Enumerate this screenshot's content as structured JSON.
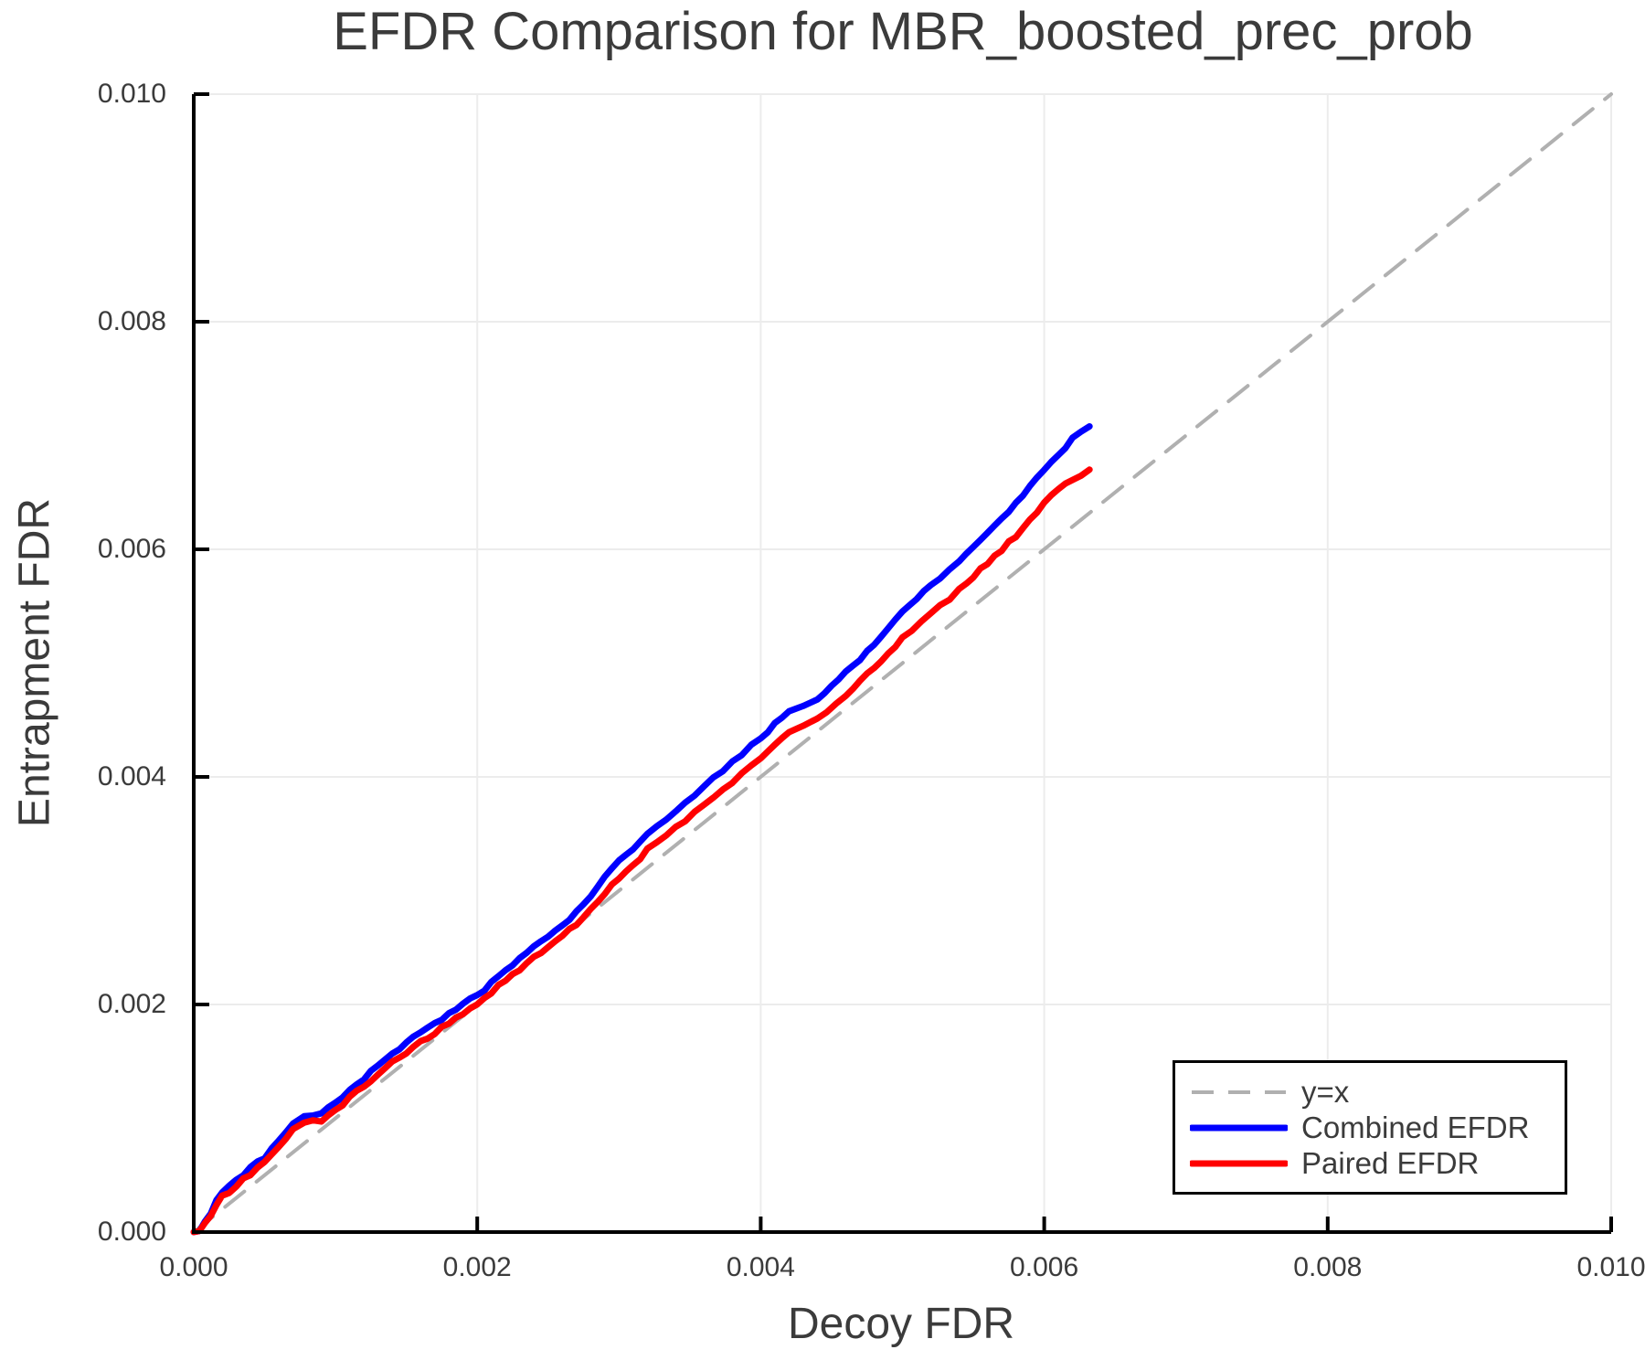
{
  "title": "EFDR Comparison for MBR_boosted_prec_prob",
  "axes": {
    "xlabel": "Decoy FDR",
    "ylabel": "Entrapment FDR",
    "x_tick_values": [
      0,
      0.002,
      0.004,
      0.006,
      0.008,
      0.01
    ],
    "x_tick_labels": [
      "0.000",
      "0.002",
      "0.004",
      "0.006",
      "0.008",
      "0.010"
    ],
    "y_tick_values": [
      0,
      0.002,
      0.004,
      0.006,
      0.008,
      0.01
    ],
    "y_tick_labels": [
      "0.000",
      "0.002",
      "0.004",
      "0.006",
      "0.008",
      "0.010"
    ],
    "grid": true
  },
  "style": {
    "background": "#ffffff",
    "grid_color": "#ececec",
    "axis_color": "#000000",
    "text_color": "#3b3b3b",
    "identity_color": "#b0b0b0",
    "combined_color": "#0000ff",
    "paired_color": "#ff0000"
  },
  "legend": {
    "position": "lower right",
    "entries": [
      {
        "label": "y=x",
        "color": "#b0b0b0",
        "dashed": true
      },
      {
        "label": "Combined EFDR",
        "color": "#0000ff",
        "dashed": false
      },
      {
        "label": "Paired EFDR",
        "color": "#ff0000",
        "dashed": false
      }
    ]
  },
  "chart_data": {
    "type": "line",
    "title": "EFDR Comparison for MBR_boosted_prec_prob",
    "xlabel": "Decoy FDR",
    "ylabel": "Entrapment FDR",
    "xlim": [
      0,
      0.01
    ],
    "ylim": [
      0,
      0.01
    ],
    "grid": true,
    "legend_position": "lower right",
    "series": [
      {
        "name": "y=x",
        "style": "dashed",
        "color": "#b0b0b0",
        "x": [
          0,
          0.01
        ],
        "y": [
          0,
          0.01
        ]
      },
      {
        "name": "Combined EFDR",
        "style": "solid",
        "color": "#0000ff",
        "x": [
          0,
          4e-05,
          8e-05,
          0.00012,
          0.00016,
          0.0002,
          0.00025,
          0.0003,
          0.0004,
          0.0005,
          0.0006,
          0.0007,
          0.00078,
          0.0009,
          0.001,
          0.0011,
          0.0012,
          0.0013,
          0.0014,
          0.0015,
          0.0016,
          0.0017,
          0.0018,
          0.0019,
          0.002,
          0.0021,
          0.0022,
          0.0023,
          0.0024,
          0.0025,
          0.0026,
          0.0027,
          0.0028,
          0.0029,
          0.003,
          0.0031,
          0.0032,
          0.0034,
          0.0036,
          0.0038,
          0.004,
          0.0041,
          0.0042,
          0.0043,
          0.0044,
          0.0046,
          0.0048,
          0.005,
          0.0052,
          0.0054,
          0.0056,
          0.0058,
          0.006,
          0.0061,
          0.0062,
          0.00632
        ],
        "y": [
          0,
          1e-05,
          0.0001,
          0.00016,
          0.00028,
          0.00036,
          0.0004,
          0.00046,
          0.00056,
          0.00066,
          0.0008,
          0.00096,
          0.00101,
          0.00104,
          0.00114,
          0.00125,
          0.00135,
          0.00146,
          0.00157,
          0.00166,
          0.00175,
          0.00183,
          0.00192,
          0.002,
          0.00208,
          0.00219,
          0.0023,
          0.0024,
          0.00252,
          0.0026,
          0.0027,
          0.00281,
          0.00294,
          0.00312,
          0.00326,
          0.00336,
          0.0035,
          0.0037,
          0.00392,
          0.00413,
          0.00434,
          0.00447,
          0.00458,
          0.00462,
          0.00468,
          0.00492,
          0.00516,
          0.00545,
          0.00568,
          0.0059,
          0.00614,
          0.0064,
          0.0067,
          0.00682,
          0.00697,
          0.00708
        ]
      },
      {
        "name": "Paired EFDR",
        "style": "solid",
        "color": "#ff0000",
        "x": [
          0,
          4e-05,
          8e-05,
          0.00012,
          0.00016,
          0.0002,
          0.00025,
          0.0003,
          0.0004,
          0.0005,
          0.0006,
          0.0007,
          0.00078,
          0.0009,
          0.001,
          0.0011,
          0.0012,
          0.0013,
          0.0014,
          0.0015,
          0.0016,
          0.0017,
          0.0018,
          0.0019,
          0.002,
          0.0021,
          0.0022,
          0.0023,
          0.0024,
          0.0025,
          0.0026,
          0.0027,
          0.0028,
          0.0029,
          0.003,
          0.0031,
          0.0032,
          0.0034,
          0.0036,
          0.0038,
          0.004,
          0.0041,
          0.0042,
          0.0043,
          0.0044,
          0.0046,
          0.0048,
          0.005,
          0.0052,
          0.0054,
          0.0056,
          0.0058,
          0.006,
          0.0061,
          0.0062,
          0.00632
        ],
        "y": [
          0,
          1e-05,
          8e-05,
          0.00013,
          0.00024,
          0.00032,
          0.00035,
          0.00041,
          0.00051,
          0.00061,
          0.00074,
          0.0009,
          0.00096,
          0.00098,
          0.00107,
          0.00118,
          0.00128,
          0.00139,
          0.00149,
          0.00158,
          0.00167,
          0.00175,
          0.00184,
          0.00192,
          0.002,
          0.00211,
          0.00222,
          0.0023,
          0.00242,
          0.0025,
          0.00261,
          0.00271,
          0.00283,
          0.00298,
          0.00311,
          0.00322,
          0.00336,
          0.00355,
          0.00376,
          0.00396,
          0.00416,
          0.00428,
          0.0044,
          0.00444,
          0.0045,
          0.00472,
          0.00496,
          0.00522,
          0.00543,
          0.00564,
          0.00588,
          0.00612,
          0.00641,
          0.00652,
          0.00662,
          0.0067
        ]
      }
    ]
  }
}
